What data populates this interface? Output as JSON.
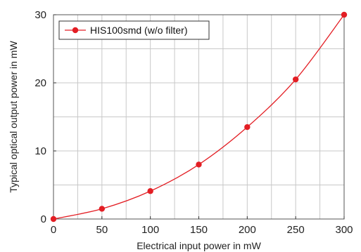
{
  "chart_data": {
    "type": "line",
    "title": "",
    "xlabel": "Electrical input power in mW",
    "ylabel": "Typical optical output power in mW",
    "x": [
      0,
      50,
      100,
      150,
      200,
      250,
      300
    ],
    "series": [
      {
        "name": "HIS100smd (w/o filter)",
        "values": [
          0,
          1.5,
          4.1,
          8.0,
          13.5,
          20.5,
          30.0
        ]
      }
    ],
    "xlim": [
      0,
      300
    ],
    "ylim": [
      0,
      30
    ],
    "x_ticks": [
      "0",
      "50",
      "100",
      "150",
      "200",
      "250",
      "300"
    ],
    "y_ticks": [
      "0",
      "10",
      "20",
      "30"
    ],
    "grid": true,
    "legend_position": "top-left",
    "color": "#e31e24"
  }
}
